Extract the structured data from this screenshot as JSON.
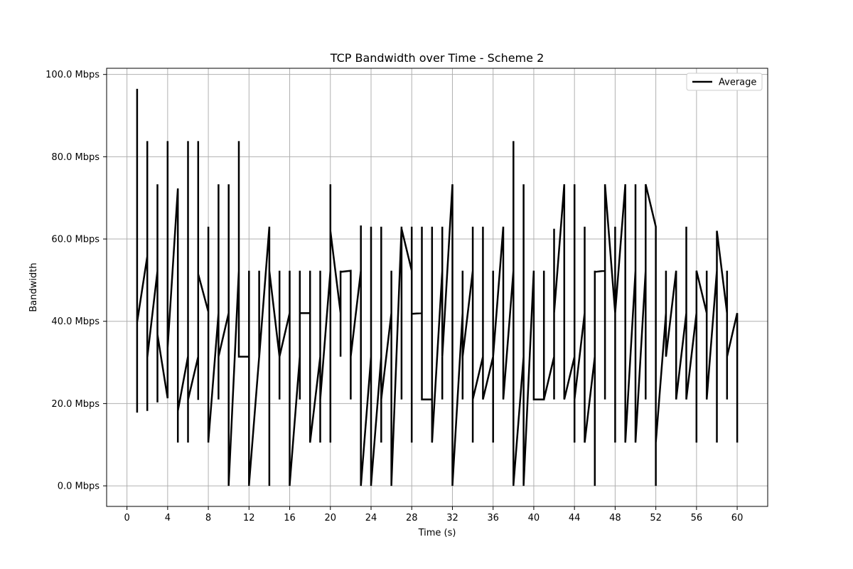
{
  "chart_data": {
    "type": "line",
    "title": "TCP Bandwidth over Time - Scheme 2",
    "xlabel": "Time (s)",
    "ylabel": "Bandwidth",
    "xlim": [
      -2,
      63
    ],
    "ylim": [
      -5,
      101.5
    ],
    "xticks": [
      0,
      4,
      8,
      12,
      16,
      20,
      24,
      28,
      32,
      36,
      40,
      44,
      48,
      52,
      56,
      60
    ],
    "xtick_labels": [
      "0",
      "4",
      "8",
      "12",
      "16",
      "20",
      "24",
      "28",
      "32",
      "36",
      "40",
      "44",
      "48",
      "52",
      "56",
      "60"
    ],
    "yticks": [
      0,
      20,
      40,
      60,
      80,
      100
    ],
    "ytick_labels": [
      "0.0 Mbps",
      "20.0 Mbps",
      "40.0 Mbps",
      "60.0 Mbps",
      "80.0 Mbps",
      "100.0 Mbps"
    ],
    "grid": true,
    "legend": {
      "position": "top-right",
      "entries": [
        "Average"
      ]
    },
    "series": [
      {
        "name": "Average",
        "color": "#000000",
        "points": [
          [
            1,
            96.5
          ],
          [
            1,
            17.8
          ],
          [
            1,
            39.8
          ],
          [
            2,
            55.8
          ],
          [
            2,
            18.2
          ],
          [
            2,
            83.8
          ],
          [
            2,
            31.2
          ],
          [
            3,
            52.2
          ],
          [
            3,
            20.3
          ],
          [
            3,
            73.3
          ],
          [
            3,
            36.8
          ],
          [
            4,
            21.3
          ],
          [
            4,
            83.8
          ],
          [
            4,
            33.5
          ],
          [
            5,
            72.3
          ],
          [
            5,
            10.5
          ],
          [
            5,
            18.2
          ],
          [
            6,
            31.5
          ],
          [
            6,
            10.5
          ],
          [
            6,
            83.8
          ],
          [
            6,
            20.9
          ],
          [
            7,
            31.4
          ],
          [
            7,
            20.9
          ],
          [
            7,
            83.8
          ],
          [
            7,
            51.5
          ],
          [
            8,
            42.3
          ],
          [
            8,
            10.5
          ],
          [
            8,
            63.0
          ],
          [
            8,
            10.8
          ],
          [
            9,
            42.0
          ],
          [
            9,
            21.0
          ],
          [
            9,
            73.3
          ],
          [
            9,
            31.4
          ],
          [
            10,
            42.0
          ],
          [
            10,
            0
          ],
          [
            10,
            73.3
          ],
          [
            10,
            0.2
          ],
          [
            11,
            52.3
          ],
          [
            11,
            83.8
          ],
          [
            11,
            31.4
          ],
          [
            12,
            31.4
          ],
          [
            12,
            0
          ],
          [
            12,
            52.3
          ],
          [
            12,
            0.2
          ],
          [
            13,
            31.4
          ],
          [
            13,
            52.3
          ],
          [
            13,
            31.2
          ],
          [
            14,
            63.0
          ],
          [
            14,
            0
          ],
          [
            14,
            52.3
          ],
          [
            15,
            31.4
          ],
          [
            15,
            21.0
          ],
          [
            15,
            52.3
          ],
          [
            15,
            31.4
          ],
          [
            16,
            42.0
          ],
          [
            16,
            0
          ],
          [
            16,
            52.3
          ],
          [
            16,
            0.2
          ],
          [
            17,
            31.4
          ],
          [
            17,
            21.0
          ],
          [
            17,
            52.3
          ],
          [
            17,
            42.0
          ],
          [
            18,
            42.0
          ],
          [
            18,
            10.5
          ],
          [
            18,
            52.3
          ],
          [
            18,
            10.5
          ],
          [
            19,
            31.4
          ],
          [
            19,
            10.5
          ],
          [
            19,
            52.3
          ],
          [
            19,
            21.0
          ],
          [
            20,
            52.3
          ],
          [
            20,
            10.5
          ],
          [
            20,
            73.3
          ],
          [
            20,
            62.0
          ],
          [
            21,
            42.0
          ],
          [
            21,
            31.4
          ],
          [
            21,
            52.3
          ],
          [
            21,
            52.0
          ],
          [
            22,
            52.3
          ],
          [
            22,
            21.0
          ],
          [
            22,
            31.4
          ],
          [
            23,
            52.3
          ],
          [
            23,
            63.3
          ],
          [
            23,
            0
          ],
          [
            24,
            31.4
          ],
          [
            24,
            0
          ],
          [
            24,
            63.0
          ],
          [
            24,
            0.2
          ],
          [
            25,
            31.4
          ],
          [
            25,
            10.5
          ],
          [
            25,
            63.0
          ],
          [
            25,
            21.0
          ],
          [
            26,
            42.0
          ],
          [
            26,
            0
          ],
          [
            26,
            52.3
          ],
          [
            26,
            0.2
          ],
          [
            27,
            63.0
          ],
          [
            27,
            21.0
          ],
          [
            27,
            62.5
          ],
          [
            28,
            52.3
          ],
          [
            28,
            10.5
          ],
          [
            28,
            63.0
          ],
          [
            28,
            41.8
          ],
          [
            29,
            42.0
          ],
          [
            29,
            21.0
          ],
          [
            29,
            63.0
          ],
          [
            29,
            21.0
          ],
          [
            30,
            21.0
          ],
          [
            30,
            10.5
          ],
          [
            30,
            63.0
          ],
          [
            30,
            10.5
          ],
          [
            31,
            52.3
          ],
          [
            31,
            21.0
          ],
          [
            31,
            63.0
          ],
          [
            31,
            31.4
          ],
          [
            32,
            73.3
          ],
          [
            32,
            0
          ],
          [
            32,
            52.3
          ],
          [
            32,
            0.2
          ],
          [
            33,
            42.0
          ],
          [
            33,
            21.0
          ],
          [
            33,
            52.3
          ],
          [
            33,
            31.4
          ],
          [
            34,
            52.3
          ],
          [
            34,
            10.5
          ],
          [
            34,
            63.0
          ],
          [
            34,
            21.0
          ],
          [
            35,
            31.4
          ],
          [
            35,
            21.0
          ],
          [
            35,
            63.0
          ],
          [
            35,
            21.0
          ],
          [
            36,
            31.4
          ],
          [
            36,
            10.5
          ],
          [
            36,
            52.3
          ],
          [
            36,
            31.4
          ],
          [
            37,
            63.0
          ],
          [
            37,
            21.0
          ],
          [
            37,
            52.3
          ],
          [
            37,
            21.0
          ],
          [
            38,
            52.3
          ],
          [
            38,
            0
          ],
          [
            38,
            83.8
          ],
          [
            38,
            0.2
          ],
          [
            39,
            31.4
          ],
          [
            39,
            0
          ],
          [
            39,
            73.3
          ],
          [
            39,
            0.2
          ],
          [
            40,
            52.3
          ],
          [
            40,
            21.0
          ],
          [
            40,
            52.3
          ],
          [
            40,
            21.0
          ],
          [
            41,
            21.0
          ],
          [
            41,
            52.3
          ],
          [
            41,
            21.0
          ],
          [
            42,
            31.4
          ],
          [
            42,
            21.0
          ],
          [
            42,
            62.5
          ],
          [
            42,
            42.0
          ],
          [
            43,
            73.3
          ],
          [
            43,
            21.0
          ],
          [
            44,
            31.4
          ],
          [
            44,
            10.5
          ],
          [
            44,
            73.3
          ],
          [
            44,
            21.0
          ],
          [
            45,
            42.0
          ],
          [
            45,
            10.5
          ],
          [
            45,
            63.0
          ],
          [
            45,
            10.5
          ],
          [
            46,
            31.4
          ],
          [
            46,
            0
          ],
          [
            46,
            52.3
          ],
          [
            46,
            0.2
          ],
          [
            46,
            52.0
          ],
          [
            47,
            52.3
          ],
          [
            47,
            21.0
          ],
          [
            47,
            73.3
          ],
          [
            48,
            42.0
          ],
          [
            48,
            10.5
          ],
          [
            48,
            63.0
          ],
          [
            48,
            42.0
          ],
          [
            49,
            73.3
          ],
          [
            49,
            10.5
          ],
          [
            49,
            52.3
          ],
          [
            49,
            10.5
          ],
          [
            50,
            52.3
          ],
          [
            50,
            10.5
          ],
          [
            50,
            73.3
          ],
          [
            50,
            10.5
          ],
          [
            51,
            52.3
          ],
          [
            51,
            21.0
          ],
          [
            51,
            73.3
          ],
          [
            52,
            63.0
          ],
          [
            52,
            0
          ],
          [
            52,
            10.5
          ],
          [
            53,
            42.0
          ],
          [
            53,
            31.4
          ],
          [
            53,
            52.3
          ],
          [
            53,
            31.4
          ],
          [
            54,
            52.3
          ],
          [
            54,
            21.0
          ],
          [
            54,
            52.3
          ],
          [
            54,
            21.0
          ],
          [
            55,
            42.0
          ],
          [
            55,
            21.0
          ],
          [
            55,
            63.0
          ],
          [
            55,
            21.0
          ],
          [
            56,
            42.0
          ],
          [
            56,
            10.5
          ],
          [
            56,
            52.3
          ],
          [
            57,
            42.0
          ],
          [
            57,
            21.0
          ],
          [
            57,
            52.3
          ],
          [
            57,
            21.0
          ],
          [
            58,
            52.3
          ],
          [
            58,
            10.5
          ],
          [
            58,
            62.0
          ],
          [
            58,
            10.5
          ],
          [
            58,
            62.0
          ],
          [
            59,
            42.0
          ],
          [
            59,
            21.0
          ],
          [
            59,
            52.3
          ],
          [
            59,
            31.4
          ],
          [
            60,
            42.0
          ],
          [
            60,
            10.5
          ],
          [
            60,
            42.0
          ]
        ]
      }
    ]
  }
}
